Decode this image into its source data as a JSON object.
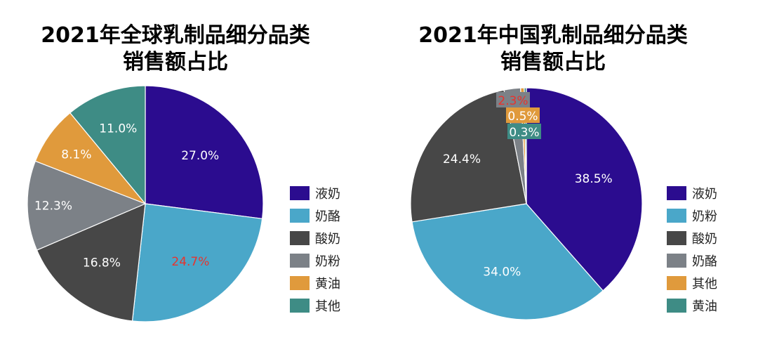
{
  "chart_data": [
    {
      "type": "pie",
      "title_lines": [
        "2021年全球乳制品细分品类",
        "销售额占比"
      ],
      "slices": [
        {
          "label": "液奶",
          "value": 27.0,
          "value_label": "27.0%",
          "color": "#2b0c8f",
          "label_color": "#ffffff"
        },
        {
          "label": "奶酪",
          "value": 24.7,
          "value_label": "24.7%",
          "color": "#4aa7c9",
          "label_color": "#e8332d"
        },
        {
          "label": "酸奶",
          "value": 16.8,
          "value_label": "16.8%",
          "color": "#474747",
          "label_color": "#ffffff"
        },
        {
          "label": "奶粉",
          "value": 12.3,
          "value_label": "12.3%",
          "color": "#7c8187",
          "label_color": "#ffffff"
        },
        {
          "label": "黄油",
          "value": 8.1,
          "value_label": "8.1%",
          "color": "#e09a3c",
          "label_color": "#ffffff"
        },
        {
          "label": "其他",
          "value": 11.0,
          "value_label": "11.0%",
          "color": "#3e8c85",
          "label_color": "#ffffff"
        }
      ],
      "legend": [
        "液奶",
        "奶酪",
        "酸奶",
        "奶粉",
        "黄油",
        "其他"
      ],
      "legend_position": "right"
    },
    {
      "type": "pie",
      "title_lines": [
        "2021年中国乳制品细分品类",
        "销售额占比"
      ],
      "slices": [
        {
          "label": "液奶",
          "value": 38.5,
          "value_label": "38.5%",
          "color": "#2b0c8f",
          "label_color": "#ffffff"
        },
        {
          "label": "奶粉",
          "value": 34.0,
          "value_label": "34.0%",
          "color": "#4aa7c9",
          "label_color": "#ffffff"
        },
        {
          "label": "酸奶",
          "value": 24.4,
          "value_label": "24.4%",
          "color": "#474747",
          "label_color": "#ffffff"
        },
        {
          "label": "奶酪",
          "value": 2.3,
          "value_label": "2.3%",
          "color": "#7c8187",
          "label_color": "#e8332d"
        },
        {
          "label": "其他",
          "value": 0.5,
          "value_label": "0.5%",
          "color": "#e09a3c",
          "label_color": "#ffffff"
        },
        {
          "label": "黄油",
          "value": 0.3,
          "value_label": "0.3%",
          "color": "#3e8c85",
          "label_color": "#ffffff"
        }
      ],
      "legend": [
        "液奶",
        "奶粉",
        "酸奶",
        "奶酪",
        "其他",
        "黄油"
      ],
      "legend_position": "right"
    }
  ]
}
